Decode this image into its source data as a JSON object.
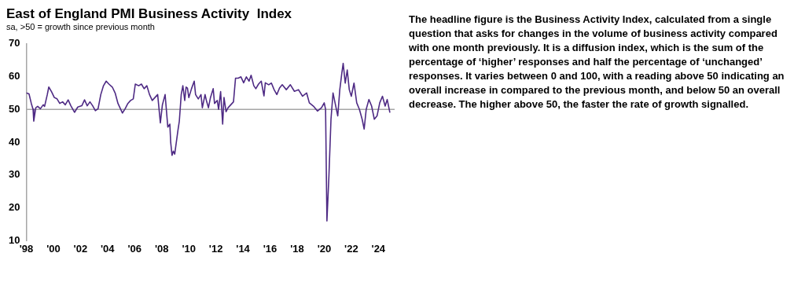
{
  "chart_data": {
    "type": "line",
    "title": "East of England PMI Business Activity  Index",
    "subtitle": "sa, >50 = growth since previous month",
    "x": [
      1998.0,
      1998.2,
      1998.37,
      1998.5,
      1998.55,
      1998.7,
      1998.84,
      1999.04,
      1999.25,
      1999.35,
      1999.55,
      1999.66,
      1999.86,
      2000.07,
      2000.27,
      2000.47,
      2000.68,
      2000.88,
      2001.09,
      2001.29,
      2001.56,
      2001.8,
      2002.1,
      2002.3,
      2002.5,
      2002.7,
      2002.9,
      2003.1,
      2003.3,
      2003.5,
      2003.7,
      2003.9,
      2004.1,
      2004.35,
      2004.56,
      2004.77,
      2004.97,
      2005.1,
      2005.3,
      2005.5,
      2005.7,
      2005.9,
      2006.05,
      2006.3,
      2006.5,
      2006.7,
      2006.9,
      2007.1,
      2007.3,
      2007.5,
      2007.7,
      2007.9,
      2008.05,
      2008.25,
      2008.45,
      2008.6,
      2008.66,
      2008.76,
      2008.86,
      2008.96,
      2009.2,
      2009.3,
      2009.44,
      2009.56,
      2009.7,
      2009.8,
      2009.9,
      2010.0,
      2010.2,
      2010.4,
      2010.5,
      2010.7,
      2010.9,
      2011.0,
      2011.2,
      2011.3,
      2011.45,
      2011.6,
      2011.8,
      2011.9,
      2012.1,
      2012.2,
      2012.35,
      2012.5,
      2012.6,
      2012.75,
      2012.9,
      2013.1,
      2013.3,
      2013.45,
      2013.65,
      2013.85,
      2014.05,
      2014.25,
      2014.45,
      2014.6,
      2014.8,
      2014.95,
      2015.15,
      2015.35,
      2015.55,
      2015.65,
      2015.9,
      2016.1,
      2016.3,
      2016.5,
      2016.7,
      2016.9,
      2017.2,
      2017.5,
      2017.8,
      2018.1,
      2018.4,
      2018.7,
      2018.9,
      2019.2,
      2019.5,
      2019.8,
      2020.0,
      2020.1,
      2020.2,
      2020.35,
      2020.5,
      2020.65,
      2020.8,
      2021.0,
      2021.15,
      2021.3,
      2021.4,
      2021.55,
      2021.7,
      2021.85,
      2022.0,
      2022.2,
      2022.4,
      2022.6,
      2022.8,
      2022.95,
      2023.1,
      2023.3,
      2023.5,
      2023.7,
      2023.9,
      2024.1,
      2024.3,
      2024.5,
      2024.65,
      2024.85
    ],
    "series": [
      {
        "color": "#4e2a84",
        "values": [
          55,
          54.7,
          51.8,
          50,
          46.4,
          50.5,
          50.9,
          50.2,
          51.4,
          50.9,
          54.5,
          56.8,
          55.4,
          53.6,
          53.2,
          51.8,
          52.3,
          51.4,
          52.9,
          51.1,
          49.1,
          50.7,
          51.1,
          52.9,
          51.1,
          52.3,
          51.1,
          49.6,
          50.2,
          54.5,
          57.2,
          58.6,
          57.7,
          56.8,
          55,
          51.8,
          50,
          48.9,
          50.2,
          51.8,
          52.7,
          53.2,
          57.7,
          57.2,
          57.7,
          56.3,
          57.2,
          54.5,
          52.7,
          53.6,
          54.5,
          45.9,
          51.4,
          54.5,
          44.6,
          45.5,
          40.1,
          36,
          37.3,
          36.4,
          43.7,
          46.4,
          54.5,
          57.2,
          52.7,
          56.8,
          56.5,
          53.6,
          56.3,
          58.6,
          54.5,
          53.2,
          54.5,
          50.5,
          54.5,
          52.7,
          50.5,
          53.6,
          56.3,
          51.8,
          52.7,
          50,
          55.4,
          45.5,
          53.6,
          49.3,
          50.5,
          51.4,
          52.3,
          59.5,
          59.5,
          59.9,
          58.1,
          59.9,
          58.6,
          60.4,
          57.2,
          56.3,
          57.7,
          58.6,
          54.1,
          58.1,
          57.5,
          58,
          56,
          54.5,
          56.5,
          57.5,
          56,
          57.5,
          55.5,
          56,
          54,
          55,
          52,
          51,
          49.5,
          50.5,
          52,
          50,
          16,
          30,
          47,
          55,
          52,
          48,
          56,
          61,
          64,
          58,
          62,
          56,
          54,
          58,
          52,
          50,
          47,
          44,
          50,
          53,
          51,
          47,
          48,
          52,
          54,
          51,
          53,
          49
        ]
      }
    ],
    "xlim": [
      1998,
      2025.2
    ],
    "xticks": [
      {
        "value": 1998,
        "label": "'98"
      },
      {
        "value": 2000,
        "label": "'00"
      },
      {
        "value": 2002,
        "label": "'02"
      },
      {
        "value": 2004,
        "label": "'04"
      },
      {
        "value": 2006,
        "label": "'06"
      },
      {
        "value": 2008,
        "label": "'08"
      },
      {
        "value": 2010,
        "label": "'10"
      },
      {
        "value": 2012,
        "label": "'12"
      },
      {
        "value": 2014,
        "label": "'14"
      },
      {
        "value": 2016,
        "label": "'16"
      },
      {
        "value": 2018,
        "label": "'18"
      },
      {
        "value": 2020,
        "label": "'20"
      },
      {
        "value": 2022,
        "label": "'22"
      },
      {
        "value": 2024,
        "label": "'24"
      }
    ],
    "ylim": [
      10,
      70
    ],
    "yticks": [
      10,
      20,
      30,
      40,
      50,
      60,
      70
    ],
    "ref_lines": [
      {
        "axis": "y",
        "value": 50,
        "color": "#a6a6a6"
      }
    ],
    "grid": false,
    "legend": false,
    "marker": "none",
    "line_style": "solid",
    "annotations": [
      "The headline figure is the Business Activity Index, calculated from a single question that asks for changes in the volume of business activity compared with one month previously. It is a diffusion index, which is the sum of the percentage of ‘higher’ responses and half the percentage of ‘unchanged’ responses. It varies between 0 and 100, with a reading above 50 indicating an overall increase in compared to the previous month, and below 50 an overall decrease. The higher above 50, the faster the rate of growth signalled."
    ]
  }
}
